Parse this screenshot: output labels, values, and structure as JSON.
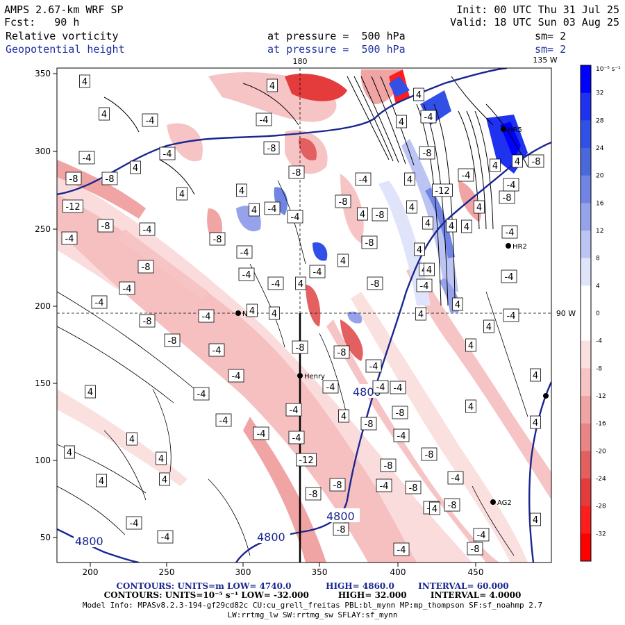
{
  "header": {
    "model": "AMPS 2.67-km WRF SP",
    "fcst": "Fcst:   90 h",
    "init": "Init: 00 UTC Thu 31 Jul 25",
    "valid": "Valid: 18 UTC Sun 03 Aug 25",
    "field1": "Relative vorticity",
    "field2": "Geopotential height",
    "level1": "at pressure =  500 hPa",
    "level2": "at pressure =  500 hPa",
    "sm1": "sm= 2",
    "sm2": "sm= 2"
  },
  "map": {
    "top_labels": [
      "180",
      "135 W"
    ],
    "right_label": "90 W",
    "x_ticks": [
      "200",
      "250",
      "300",
      "350",
      "400",
      "450"
    ],
    "y_ticks": [
      "350",
      "300",
      "250",
      "200",
      "150",
      "100",
      "50"
    ],
    "stations": [
      "NCO",
      "Henry",
      "HR2",
      "HR5",
      "AG2"
    ],
    "height_contour_labels": [
      "4800",
      "4800",
      "4800",
      "4800"
    ],
    "vorticity_labels": [
      "4",
      "-4",
      "-8",
      "-12"
    ]
  },
  "colorbar": {
    "unit_label": "10⁻⁵ s⁻¹",
    "ticks": [
      "32",
      "28",
      "24",
      "20",
      "16",
      "12",
      "8",
      "4",
      "0",
      "-4",
      "-8",
      "-12",
      "-16",
      "-20",
      "-24",
      "-28",
      "-32"
    ],
    "colors": [
      "#0000ff",
      "#1e32f0",
      "#3250e6",
      "#4a68dc",
      "#7085e3",
      "#96a3ea",
      "#bcc4f3",
      "#e0e4fb",
      "#ffffff",
      "#ffffff",
      "#fbe0e0",
      "#f6c4c4",
      "#f0a4a4",
      "#ea8585",
      "#e46060",
      "#e43c3c",
      "#ff1e1e",
      "#ff0000"
    ]
  },
  "footer": {
    "line1_a": "CONTOURS:  UNITS=m  LOW=  4740.0",
    "line1_b": "HIGH=  4860.0",
    "line1_c": "INTERVAL=   60.000",
    "line2_a": "CONTOURS:  UNITS=10⁻⁵ s⁻¹  LOW= -32.000",
    "line2_b": "HIGH=  32.000",
    "line2_c": "INTERVAL=   4.0000",
    "line3": "Model Info: MPASv8.2.3-194-gf29cd82c CU:cu_grell_freitas PBL:bl_mynn MP:mp_thompson SF:sf_noahmp 2.7",
    "line4": "LW:rrtmg_lw SW:rrtmg_sw SFLAY:sf_mynn"
  }
}
